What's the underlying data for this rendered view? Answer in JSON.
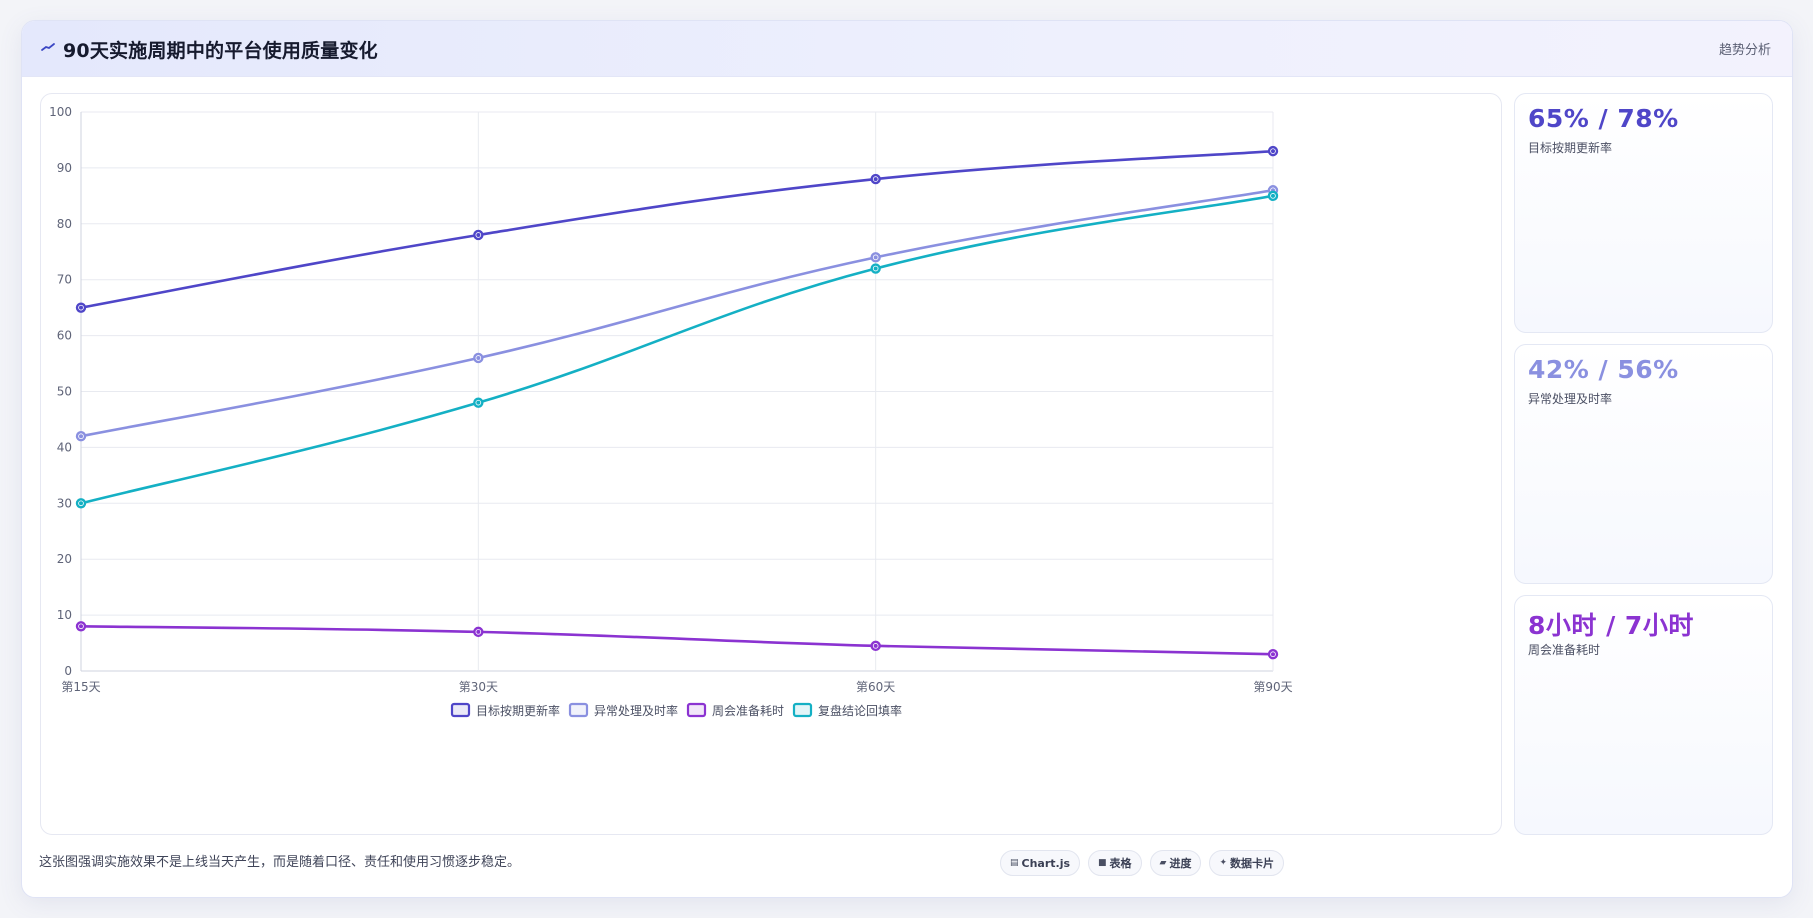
{
  "header": {
    "title": "90天实施周期中的平台使用质量变化",
    "right_label": "趋势分析"
  },
  "chart_data": {
    "type": "line",
    "categories": [
      "第15天",
      "第30天",
      "第60天",
      "第90天"
    ],
    "ylim": [
      0,
      100
    ],
    "yticks": [
      0,
      10,
      20,
      30,
      40,
      50,
      60,
      70,
      80,
      90,
      100
    ],
    "grid": true,
    "legend_position": "bottom",
    "series": [
      {
        "name": "目标按期更新率",
        "values": [
          65,
          78,
          88,
          93
        ],
        "color": "#4f46c8"
      },
      {
        "name": "异常处理及时率",
        "values": [
          42,
          56,
          74,
          86
        ],
        "color": "#8a90e0"
      },
      {
        "name": "周会准备耗时",
        "values": [
          8,
          7,
          4.5,
          3
        ],
        "color": "#8b33d1"
      },
      {
        "name": "复盘结论回填率",
        "values": [
          30,
          48,
          72,
          85
        ],
        "color": "#14b0c4"
      }
    ]
  },
  "stats": [
    {
      "value": "65% / 78%",
      "label": "目标按期更新率",
      "color": "#4f46c8"
    },
    {
      "value": "42% / 56%",
      "label": "异常处理及时率",
      "color": "#8a90e0"
    },
    {
      "value": "8小时 / 7小时",
      "label": "周会准备耗时",
      "color": "#8b33d1"
    }
  ],
  "footer": {
    "note": "这张图强调实施效果不是上线当天产生，而是随着口径、责任和使用习惯逐步稳定。",
    "chips": [
      {
        "icon": "▤",
        "label": "Chart.js"
      },
      {
        "icon": "■",
        "label": "表格"
      },
      {
        "icon": "▰",
        "label": "进度"
      },
      {
        "icon": "✦",
        "label": "数据卡片"
      }
    ]
  }
}
